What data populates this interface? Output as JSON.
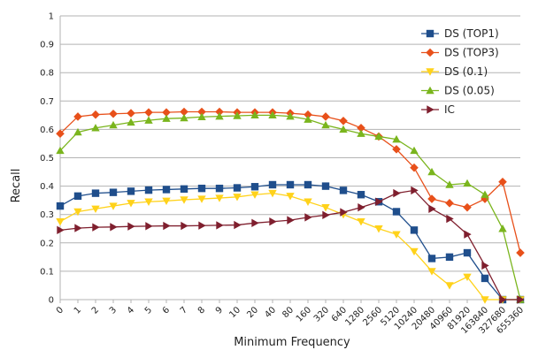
{
  "chart_data": {
    "type": "line",
    "title": "",
    "xlabel": "Minimum Frequency",
    "ylabel": "Recall",
    "ylim": [
      0,
      1
    ],
    "yticks": [
      "0",
      "0.1",
      "0.2",
      "0.3",
      "0.4",
      "0.5",
      "0.6",
      "0.7",
      "0.8",
      "0.9",
      "1"
    ],
    "categories": [
      "0",
      "1",
      "2",
      "3",
      "4",
      "5",
      "6",
      "7",
      "8",
      "9",
      "10",
      "20",
      "40",
      "80",
      "160",
      "320",
      "640",
      "1280",
      "2560",
      "5120",
      "10240",
      "20480",
      "40960",
      "81920",
      "163840",
      "327680",
      "655360"
    ],
    "grid": "horizontal",
    "legend_position": "top-right",
    "series": [
      {
        "name": "DS (TOP1)",
        "color": "#1f4e8c",
        "marker": "square",
        "values": [
          0.33,
          0.365,
          0.375,
          0.378,
          0.382,
          0.386,
          0.388,
          0.39,
          0.392,
          0.392,
          0.394,
          0.398,
          0.405,
          0.405,
          0.405,
          0.4,
          0.385,
          0.37,
          0.345,
          0.31,
          0.245,
          0.145,
          0.15,
          0.165,
          0.075,
          0.0,
          0.0
        ]
      },
      {
        "name": "DS (TOP3)",
        "color": "#e8501a",
        "marker": "diamond",
        "values": [
          0.585,
          0.645,
          0.652,
          0.655,
          0.657,
          0.66,
          0.66,
          0.662,
          0.662,
          0.662,
          0.66,
          0.66,
          0.66,
          0.657,
          0.652,
          0.645,
          0.63,
          0.605,
          0.575,
          0.53,
          0.465,
          0.355,
          0.34,
          0.325,
          0.355,
          0.415,
          0.165
        ]
      },
      {
        "name": "DS (0.1)",
        "color": "#ffd21a",
        "marker": "triangle-down",
        "values": [
          0.275,
          0.31,
          0.32,
          0.33,
          0.34,
          0.345,
          0.348,
          0.352,
          0.355,
          0.358,
          0.362,
          0.37,
          0.375,
          0.365,
          0.345,
          0.325,
          0.3,
          0.275,
          0.25,
          0.23,
          0.17,
          0.1,
          0.05,
          0.08,
          0.0,
          0.0,
          0.0
        ]
      },
      {
        "name": "DS (0.05)",
        "color": "#7ab51d",
        "marker": "triangle-up",
        "values": [
          0.525,
          0.59,
          0.605,
          0.615,
          0.625,
          0.632,
          0.638,
          0.64,
          0.644,
          0.646,
          0.648,
          0.65,
          0.65,
          0.646,
          0.635,
          0.615,
          0.6,
          0.585,
          0.575,
          0.565,
          0.525,
          0.45,
          0.405,
          0.41,
          0.37,
          0.25,
          0.0
        ]
      },
      {
        "name": "IC",
        "color": "#7f1f2e",
        "marker": "triangle-right",
        "values": [
          0.245,
          0.252,
          0.255,
          0.256,
          0.258,
          0.259,
          0.26,
          0.26,
          0.261,
          0.262,
          0.263,
          0.27,
          0.275,
          0.28,
          0.29,
          0.298,
          0.308,
          0.325,
          0.345,
          0.375,
          0.385,
          0.32,
          0.285,
          0.23,
          0.12,
          0.0,
          0.0
        ]
      }
    ]
  }
}
